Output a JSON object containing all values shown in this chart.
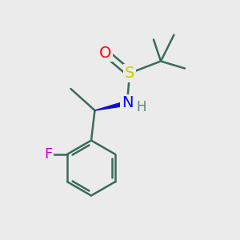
{
  "bg_color": "#ebebeb",
  "bond_color": "#3a6b5a",
  "atom_colors": {
    "O": "#ff0000",
    "S": "#cccc00",
    "N": "#0000ff",
    "F": "#cc00cc",
    "H": "#5a8a80",
    "C": "#3a6b5a"
  },
  "bond_width": 1.8,
  "font_size_atoms": 15
}
